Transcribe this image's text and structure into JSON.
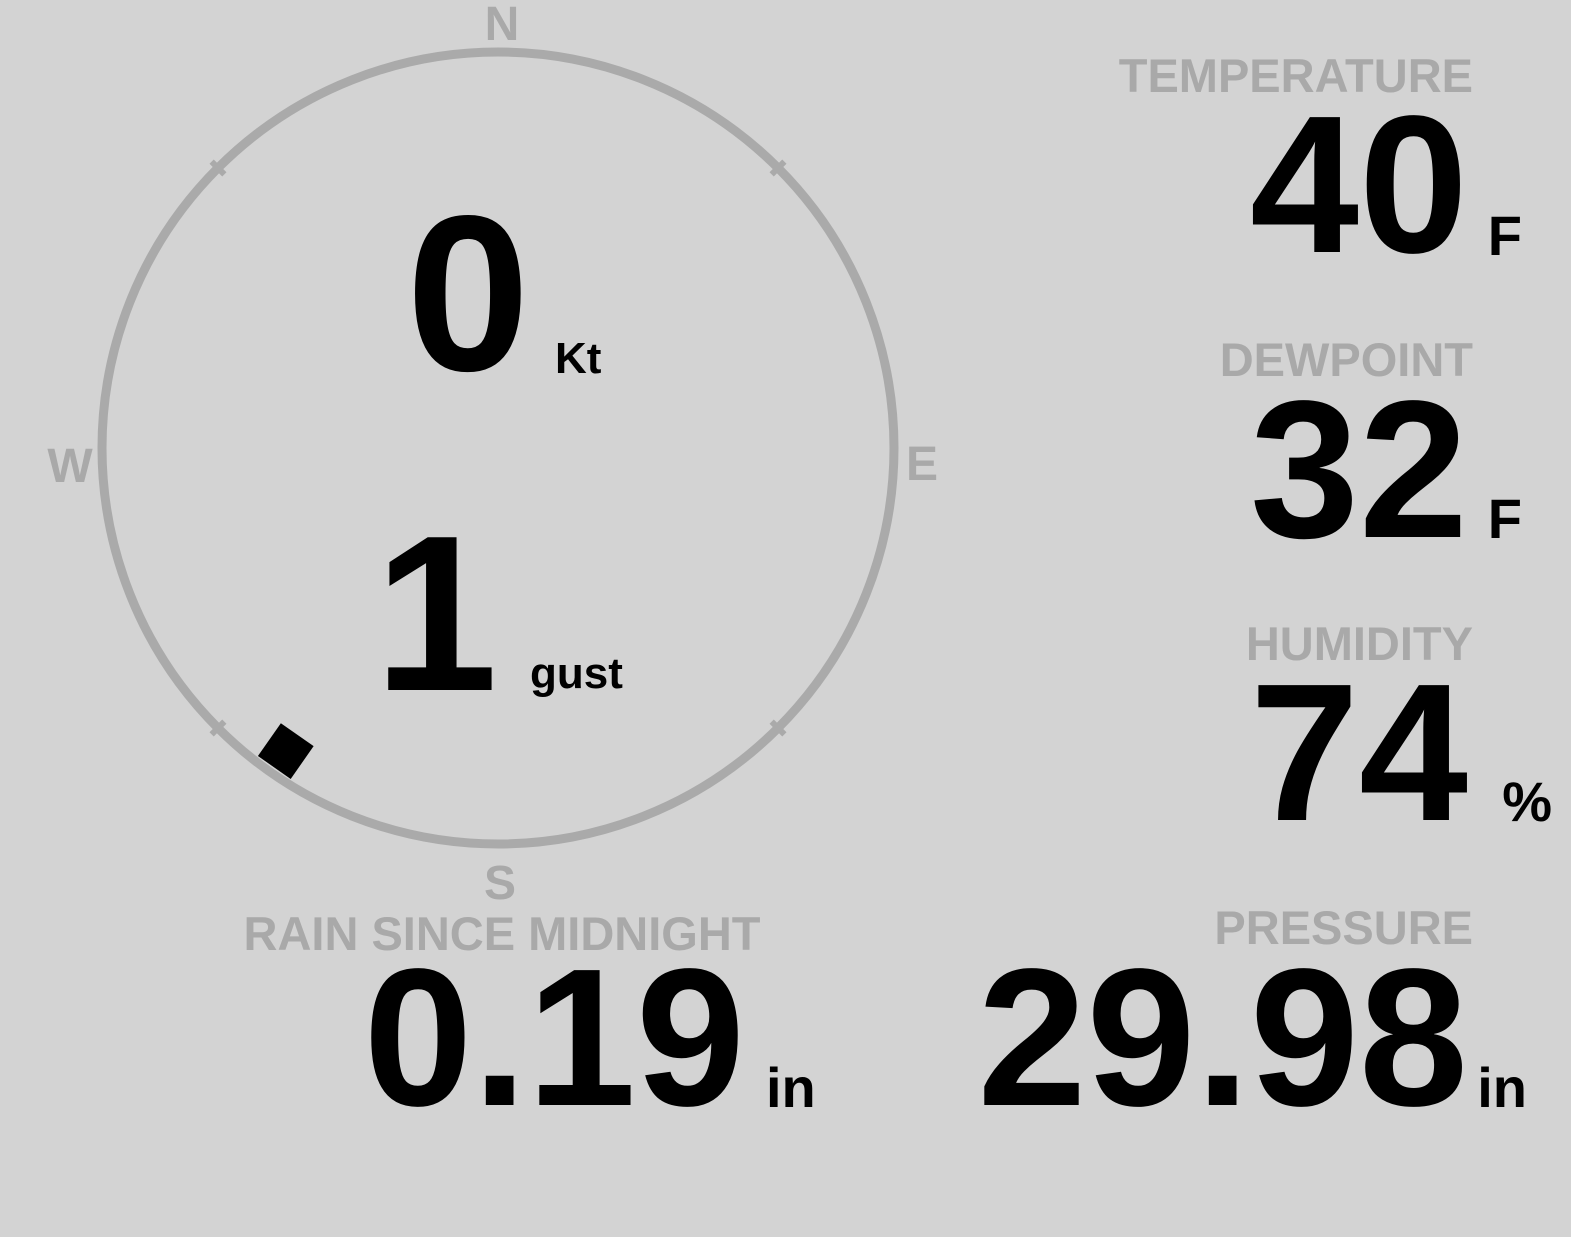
{
  "colors": {
    "background": "#d3d3d3",
    "label": "#a9a9a9",
    "value": "#000000",
    "ring": "#aaaaaa"
  },
  "wind": {
    "compass": {
      "north": "N",
      "east": "E",
      "south": "S",
      "west": "W"
    },
    "speed": "0",
    "speed_unit": "Kt",
    "gust": "1",
    "gust_unit": "gust",
    "direction_deg": 215
  },
  "temperature": {
    "label": "TEMPERATURE",
    "value": "40",
    "unit": "F"
  },
  "dewpoint": {
    "label": "DEWPOINT",
    "value": "32",
    "unit": "F"
  },
  "humidity": {
    "label": "HUMIDITY",
    "value": "74",
    "unit": "%"
  },
  "pressure": {
    "label": "PRESSURE",
    "value": "29.98",
    "unit": "in"
  },
  "rain": {
    "label": "RAIN SINCE MIDNIGHT",
    "value": "0.19",
    "unit": "in"
  }
}
